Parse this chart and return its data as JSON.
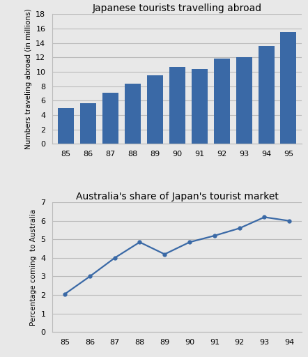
{
  "bar_years": [
    85,
    86,
    87,
    88,
    89,
    90,
    91,
    92,
    93,
    94,
    95
  ],
  "bar_values": [
    5.0,
    5.7,
    7.1,
    8.35,
    9.5,
    10.7,
    10.4,
    11.9,
    12.0,
    13.6,
    15.5
  ],
  "bar_color": "#3A69A6",
  "bar_title": "Japanese tourists travelling abroad",
  "bar_ylabel": "Numbers traveling abroad (in millions)",
  "bar_ylim": [
    0,
    18
  ],
  "bar_yticks": [
    0,
    2,
    4,
    6,
    8,
    10,
    12,
    14,
    16,
    18
  ],
  "line_years": [
    85,
    86,
    87,
    88,
    89,
    90,
    91,
    92,
    93,
    94
  ],
  "line_values": [
    2.05,
    3.0,
    4.0,
    4.85,
    4.2,
    4.85,
    5.2,
    5.6,
    6.2,
    6.0
  ],
  "line_color": "#3A69A6",
  "line_title": "Australia's share of Japan's tourist market",
  "line_ylabel": "Percentage coming  to Australia",
  "line_ylim": [
    0,
    7
  ],
  "line_yticks": [
    0,
    1,
    2,
    3,
    4,
    5,
    6,
    7
  ],
  "bg_color": "#E8E8E8",
  "plot_bg": "#E8E8E8",
  "grid_color": "#BBBBBB",
  "title_fontsize": 10,
  "tick_fontsize": 8,
  "ylabel_fontsize": 7.5
}
